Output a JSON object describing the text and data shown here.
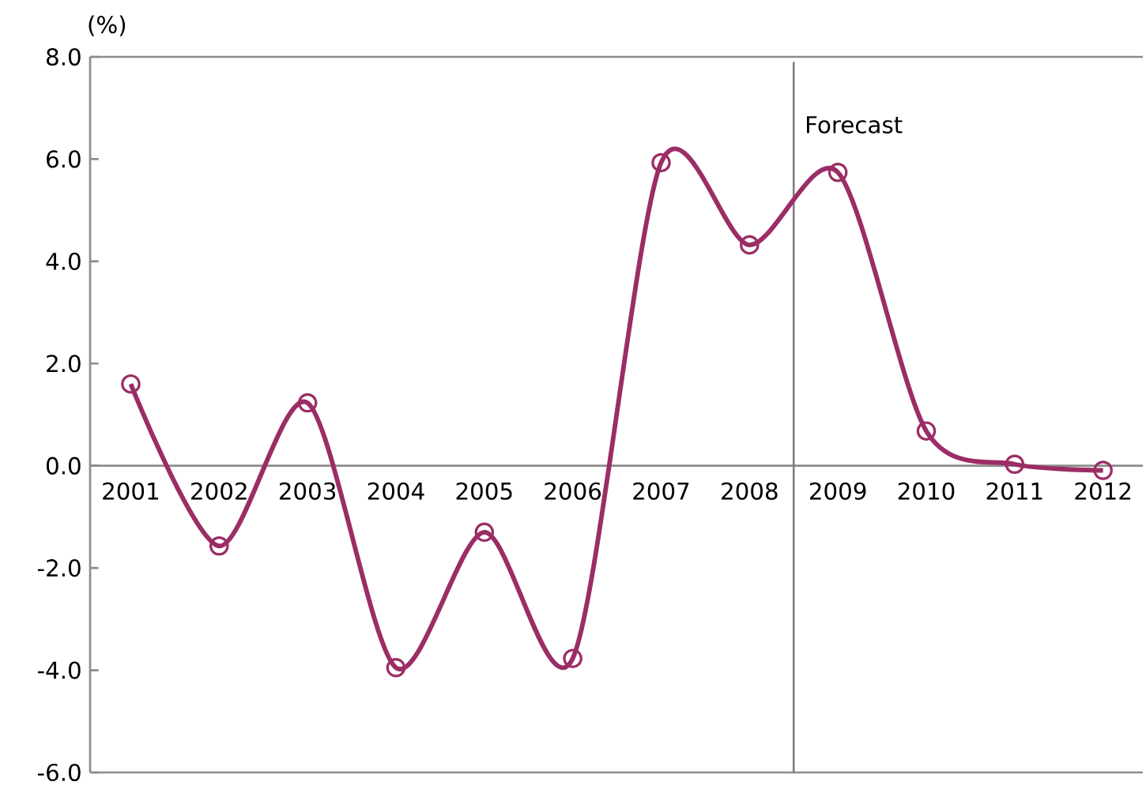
{
  "chart_data": {
    "type": "line",
    "ylabel": "(%)",
    "x": [
      2001,
      2002,
      2003,
      2004,
      2005,
      2006,
      2007,
      2008,
      2009,
      2010,
      2011,
      2012
    ],
    "series": [
      {
        "color": "#9b2d66",
        "values": [
          1.6,
          -1.57,
          1.23,
          -3.95,
          -1.3,
          -3.77,
          5.93,
          4.32,
          5.74,
          0.68,
          0.03,
          -0.09
        ]
      }
    ],
    "xlim": [
      2000.54,
      2012.45
    ],
    "xticks": [
      2001,
      2002,
      2003,
      2004,
      2005,
      2006,
      2007,
      2008,
      2009,
      2010,
      2011,
      2012
    ],
    "ylim": [
      -6,
      8
    ],
    "yticks": [
      {
        "value": -6,
        "label": "-6.0"
      },
      {
        "value": -4,
        "label": "-4.0"
      },
      {
        "value": -2,
        "label": "-2.0"
      },
      {
        "value": 0,
        "label": "0.0"
      },
      {
        "value": 2,
        "label": "2.0"
      },
      {
        "value": 4,
        "label": "4.0"
      },
      {
        "value": 6,
        "label": "6.0"
      },
      {
        "value": 8,
        "label": "8.0"
      }
    ],
    "ref_lines": [
      {
        "axis": "x",
        "value": 2008.5,
        "label": "Forecast",
        "color": "#808080"
      }
    ],
    "marker": "circle",
    "line_style": "solid",
    "grid": false
  }
}
